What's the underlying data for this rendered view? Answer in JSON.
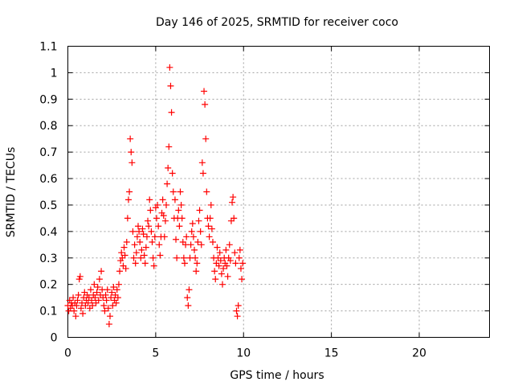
{
  "chart_data": {
    "type": "scatter",
    "title": "Day 146 of 2025, SRMTID for receiver coco",
    "xlabel": "GPS time / hours",
    "ylabel": "SRMTID / TECUs",
    "xlim": [
      0,
      24
    ],
    "ylim": [
      0,
      1.1
    ],
    "xticks": [
      0,
      5,
      10,
      15,
      20
    ],
    "xtick_labels": [
      "0",
      "5",
      "10",
      "15",
      "20"
    ],
    "yticks": [
      0,
      0.1,
      0.2,
      0.3,
      0.4,
      0.5,
      0.6,
      0.7,
      0.8,
      0.9,
      1,
      1.1
    ],
    "ytick_labels": [
      "0",
      "0.1",
      "0.2",
      "0.3",
      "0.4",
      "0.5",
      "0.6",
      "0.7",
      "0.8",
      "0.9",
      "1",
      "1.1"
    ],
    "grid": true,
    "marker": "+",
    "color": "#ff0000",
    "series": [
      {
        "name": "SRMTID",
        "points": [
          [
            0.0,
            0.12
          ],
          [
            0.05,
            0.1
          ],
          [
            0.1,
            0.14
          ],
          [
            0.15,
            0.11
          ],
          [
            0.2,
            0.13
          ],
          [
            0.25,
            0.12
          ],
          [
            0.3,
            0.15
          ],
          [
            0.35,
            0.1
          ],
          [
            0.4,
            0.13
          ],
          [
            0.45,
            0.08
          ],
          [
            0.5,
            0.12
          ],
          [
            0.55,
            0.14
          ],
          [
            0.6,
            0.16
          ],
          [
            0.65,
            0.22
          ],
          [
            0.7,
            0.23
          ],
          [
            0.75,
            0.11
          ],
          [
            0.8,
            0.13
          ],
          [
            0.85,
            0.09
          ],
          [
            0.9,
            0.15
          ],
          [
            0.95,
            0.17
          ],
          [
            1.0,
            0.12
          ],
          [
            1.05,
            0.14
          ],
          [
            1.1,
            0.16
          ],
          [
            1.15,
            0.13
          ],
          [
            1.2,
            0.15
          ],
          [
            1.25,
            0.11
          ],
          [
            1.3,
            0.18
          ],
          [
            1.35,
            0.14
          ],
          [
            1.4,
            0.12
          ],
          [
            1.45,
            0.16
          ],
          [
            1.5,
            0.2
          ],
          [
            1.55,
            0.15
          ],
          [
            1.6,
            0.13
          ],
          [
            1.65,
            0.17
          ],
          [
            1.7,
            0.19
          ],
          [
            1.75,
            0.14
          ],
          [
            1.8,
            0.22
          ],
          [
            1.85,
            0.16
          ],
          [
            1.9,
            0.25
          ],
          [
            1.95,
            0.18
          ],
          [
            2.0,
            0.15
          ],
          [
            2.05,
            0.12
          ],
          [
            2.1,
            0.1
          ],
          [
            2.15,
            0.16
          ],
          [
            2.2,
            0.14
          ],
          [
            2.25,
            0.18
          ],
          [
            2.3,
            0.11
          ],
          [
            2.35,
            0.05
          ],
          [
            2.4,
            0.08
          ],
          [
            2.45,
            0.15
          ],
          [
            2.5,
            0.17
          ],
          [
            2.55,
            0.12
          ],
          [
            2.6,
            0.19
          ],
          [
            2.65,
            0.14
          ],
          [
            2.7,
            0.16
          ],
          [
            2.75,
            0.13
          ],
          [
            2.8,
            0.18
          ],
          [
            2.85,
            0.15
          ],
          [
            2.9,
            0.2
          ],
          [
            2.95,
            0.25
          ],
          [
            3.0,
            0.29
          ],
          [
            3.05,
            0.32
          ],
          [
            3.1,
            0.3
          ],
          [
            3.15,
            0.27
          ],
          [
            3.2,
            0.34
          ],
          [
            3.25,
            0.31
          ],
          [
            3.3,
            0.26
          ],
          [
            3.35,
            0.36
          ],
          [
            3.4,
            0.45
          ],
          [
            3.45,
            0.52
          ],
          [
            3.5,
            0.55
          ],
          [
            3.55,
            0.75
          ],
          [
            3.6,
            0.7
          ],
          [
            3.65,
            0.66
          ],
          [
            3.7,
            0.4
          ],
          [
            3.75,
            0.3
          ],
          [
            3.8,
            0.35
          ],
          [
            3.85,
            0.28
          ],
          [
            3.9,
            0.32
          ],
          [
            3.95,
            0.38
          ],
          [
            4.0,
            0.42
          ],
          [
            4.05,
            0.4
          ],
          [
            4.1,
            0.36
          ],
          [
            4.15,
            0.3
          ],
          [
            4.2,
            0.33
          ],
          [
            4.25,
            0.41
          ],
          [
            4.3,
            0.39
          ],
          [
            4.35,
            0.31
          ],
          [
            4.4,
            0.28
          ],
          [
            4.45,
            0.34
          ],
          [
            4.5,
            0.38
          ],
          [
            4.55,
            0.44
          ],
          [
            4.6,
            0.42
          ],
          [
            4.65,
            0.52
          ],
          [
            4.7,
            0.48
          ],
          [
            4.75,
            0.4
          ],
          [
            4.8,
            0.36
          ],
          [
            4.85,
            0.3
          ],
          [
            4.9,
            0.27
          ],
          [
            4.95,
            0.38
          ],
          [
            5.0,
            0.49
          ],
          [
            5.05,
            0.45
          ],
          [
            5.1,
            0.5
          ],
          [
            5.15,
            0.42
          ],
          [
            5.2,
            0.35
          ],
          [
            5.25,
            0.31
          ],
          [
            5.3,
            0.38
          ],
          [
            5.35,
            0.47
          ],
          [
            5.4,
            0.52
          ],
          [
            5.45,
            0.46
          ],
          [
            5.5,
            0.38
          ],
          [
            5.55,
            0.44
          ],
          [
            5.6,
            0.5
          ],
          [
            5.65,
            0.58
          ],
          [
            5.7,
            0.64
          ],
          [
            5.75,
            0.72
          ],
          [
            5.8,
            1.02
          ],
          [
            5.85,
            0.95
          ],
          [
            5.9,
            0.85
          ],
          [
            5.95,
            0.62
          ],
          [
            6.0,
            0.55
          ],
          [
            6.05,
            0.45
          ],
          [
            6.1,
            0.52
          ],
          [
            6.15,
            0.37
          ],
          [
            6.2,
            0.3
          ],
          [
            6.25,
            0.45
          ],
          [
            6.3,
            0.48
          ],
          [
            6.35,
            0.42
          ],
          [
            6.4,
            0.55
          ],
          [
            6.45,
            0.5
          ],
          [
            6.5,
            0.45
          ],
          [
            6.55,
            0.36
          ],
          [
            6.6,
            0.3
          ],
          [
            6.65,
            0.28
          ],
          [
            6.7,
            0.35
          ],
          [
            6.75,
            0.38
          ],
          [
            6.8,
            0.15
          ],
          [
            6.85,
            0.12
          ],
          [
            6.9,
            0.18
          ],
          [
            6.95,
            0.3
          ],
          [
            7.0,
            0.35
          ],
          [
            7.05,
            0.4
          ],
          [
            7.1,
            0.43
          ],
          [
            7.15,
            0.38
          ],
          [
            7.2,
            0.33
          ],
          [
            7.25,
            0.3
          ],
          [
            7.3,
            0.25
          ],
          [
            7.35,
            0.28
          ],
          [
            7.4,
            0.36
          ],
          [
            7.45,
            0.44
          ],
          [
            7.5,
            0.48
          ],
          [
            7.55,
            0.4
          ],
          [
            7.6,
            0.35
          ],
          [
            7.65,
            0.66
          ],
          [
            7.7,
            0.62
          ],
          [
            7.75,
            0.93
          ],
          [
            7.8,
            0.88
          ],
          [
            7.85,
            0.75
          ],
          [
            7.9,
            0.55
          ],
          [
            7.95,
            0.45
          ],
          [
            8.0,
            0.42
          ],
          [
            8.05,
            0.38
          ],
          [
            8.1,
            0.45
          ],
          [
            8.15,
            0.5
          ],
          [
            8.2,
            0.41
          ],
          [
            8.25,
            0.36
          ],
          [
            8.3,
            0.3
          ],
          [
            8.35,
            0.25
          ],
          [
            8.4,
            0.22
          ],
          [
            8.45,
            0.28
          ],
          [
            8.5,
            0.34
          ],
          [
            8.55,
            0.3
          ],
          [
            8.6,
            0.27
          ],
          [
            8.65,
            0.32
          ],
          [
            8.7,
            0.29
          ],
          [
            8.75,
            0.24
          ],
          [
            8.8,
            0.2
          ],
          [
            8.85,
            0.26
          ],
          [
            8.9,
            0.3
          ],
          [
            8.95,
            0.28
          ],
          [
            9.0,
            0.33
          ],
          [
            9.05,
            0.27
          ],
          [
            9.1,
            0.23
          ],
          [
            9.15,
            0.3
          ],
          [
            9.2,
            0.35
          ],
          [
            9.25,
            0.29
          ],
          [
            9.3,
            0.44
          ],
          [
            9.35,
            0.51
          ],
          [
            9.4,
            0.53
          ],
          [
            9.45,
            0.45
          ],
          [
            9.5,
            0.32
          ],
          [
            9.55,
            0.28
          ],
          [
            9.6,
            0.1
          ],
          [
            9.65,
            0.08
          ],
          [
            9.7,
            0.12
          ],
          [
            9.75,
            0.3
          ],
          [
            9.8,
            0.33
          ],
          [
            9.85,
            0.26
          ],
          [
            9.9,
            0.22
          ],
          [
            9.95,
            0.28
          ]
        ]
      }
    ]
  }
}
